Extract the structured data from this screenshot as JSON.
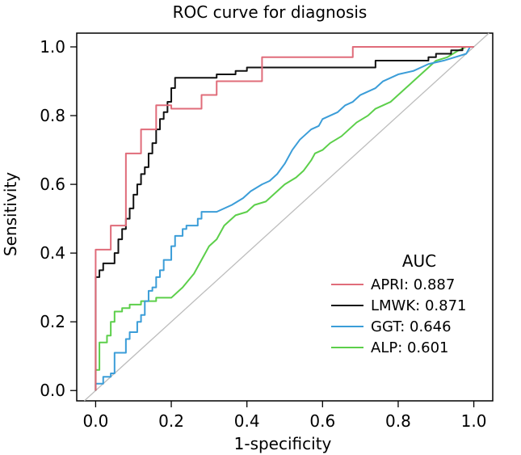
{
  "chart_data": {
    "type": "line",
    "title": "ROC curve for diagnosis",
    "xlabel": "1-specificity",
    "ylabel": "Sensitivity",
    "xlim": [
      -0.05,
      1.05
    ],
    "ylim": [
      -0.03,
      1.04
    ],
    "x_ticks": [
      "0.0",
      "0.2",
      "0.4",
      "0.6",
      "0.8",
      "1.0"
    ],
    "y_ticks": [
      "0.0",
      "0.2",
      "0.4",
      "0.6",
      "0.8",
      "1.0"
    ],
    "grid": false,
    "reference_line": true,
    "reference_line_color": "#bdbdbd",
    "legend": {
      "title": "AUC",
      "position": "bottom-right",
      "entries": [
        "APRI: 0.887",
        "LMWK: 0.871",
        "GGT: 0.646",
        "ALP: 0.601"
      ]
    },
    "series": [
      {
        "name": "APRI",
        "auc": 0.887,
        "color": "#e06c7a",
        "points": [
          [
            0,
            0
          ],
          [
            0,
            0.41
          ],
          [
            0.04,
            0.41
          ],
          [
            0.04,
            0.48
          ],
          [
            0.08,
            0.48
          ],
          [
            0.08,
            0.69
          ],
          [
            0.12,
            0.69
          ],
          [
            0.12,
            0.76
          ],
          [
            0.16,
            0.76
          ],
          [
            0.16,
            0.83
          ],
          [
            0.2,
            0.83
          ],
          [
            0.2,
            0.82
          ],
          [
            0.28,
            0.82
          ],
          [
            0.28,
            0.86
          ],
          [
            0.32,
            0.86
          ],
          [
            0.32,
            0.9
          ],
          [
            0.44,
            0.9
          ],
          [
            0.44,
            0.97
          ],
          [
            0.68,
            0.97
          ],
          [
            0.68,
            1.0
          ],
          [
            1.0,
            1.0
          ]
        ]
      },
      {
        "name": "LMWK",
        "auc": 0.871,
        "color": "#111111",
        "points": [
          [
            0,
            0
          ],
          [
            0,
            0.33
          ],
          [
            0.01,
            0.33
          ],
          [
            0.01,
            0.35
          ],
          [
            0.02,
            0.35
          ],
          [
            0.02,
            0.37
          ],
          [
            0.05,
            0.37
          ],
          [
            0.05,
            0.4
          ],
          [
            0.06,
            0.4
          ],
          [
            0.06,
            0.44
          ],
          [
            0.07,
            0.44
          ],
          [
            0.07,
            0.47
          ],
          [
            0.08,
            0.47
          ],
          [
            0.08,
            0.5
          ],
          [
            0.09,
            0.5
          ],
          [
            0.09,
            0.53
          ],
          [
            0.1,
            0.53
          ],
          [
            0.1,
            0.57
          ],
          [
            0.11,
            0.57
          ],
          [
            0.11,
            0.6
          ],
          [
            0.12,
            0.6
          ],
          [
            0.12,
            0.63
          ],
          [
            0.13,
            0.63
          ],
          [
            0.13,
            0.65
          ],
          [
            0.14,
            0.65
          ],
          [
            0.14,
            0.69
          ],
          [
            0.15,
            0.69
          ],
          [
            0.15,
            0.72
          ],
          [
            0.16,
            0.72
          ],
          [
            0.16,
            0.76
          ],
          [
            0.17,
            0.76
          ],
          [
            0.17,
            0.79
          ],
          [
            0.18,
            0.79
          ],
          [
            0.18,
            0.81
          ],
          [
            0.19,
            0.81
          ],
          [
            0.19,
            0.84
          ],
          [
            0.2,
            0.84
          ],
          [
            0.2,
            0.88
          ],
          [
            0.21,
            0.88
          ],
          [
            0.21,
            0.91
          ],
          [
            0.32,
            0.91
          ],
          [
            0.32,
            0.92
          ],
          [
            0.37,
            0.92
          ],
          [
            0.37,
            0.93
          ],
          [
            0.4,
            0.93
          ],
          [
            0.4,
            0.94
          ],
          [
            0.74,
            0.94
          ],
          [
            0.74,
            0.96
          ],
          [
            0.88,
            0.96
          ],
          [
            0.88,
            0.97
          ],
          [
            0.9,
            0.97
          ],
          [
            0.9,
            0.98
          ],
          [
            0.94,
            0.98
          ],
          [
            0.94,
            0.99
          ],
          [
            0.97,
            0.99
          ],
          [
            0.97,
            1.0
          ],
          [
            1.0,
            1.0
          ]
        ]
      },
      {
        "name": "GGT",
        "auc": 0.646,
        "color": "#3b9dd8",
        "points": [
          [
            0,
            0
          ],
          [
            0,
            0.02
          ],
          [
            0.02,
            0.02
          ],
          [
            0.02,
            0.04
          ],
          [
            0.04,
            0.04
          ],
          [
            0.04,
            0.05
          ],
          [
            0.05,
            0.05
          ],
          [
            0.05,
            0.11
          ],
          [
            0.08,
            0.11
          ],
          [
            0.08,
            0.15
          ],
          [
            0.09,
            0.15
          ],
          [
            0.09,
            0.17
          ],
          [
            0.11,
            0.17
          ],
          [
            0.11,
            0.2
          ],
          [
            0.12,
            0.2
          ],
          [
            0.12,
            0.22
          ],
          [
            0.13,
            0.22
          ],
          [
            0.13,
            0.26
          ],
          [
            0.14,
            0.26
          ],
          [
            0.14,
            0.29
          ],
          [
            0.15,
            0.29
          ],
          [
            0.15,
            0.3
          ],
          [
            0.16,
            0.3
          ],
          [
            0.16,
            0.33
          ],
          [
            0.17,
            0.33
          ],
          [
            0.17,
            0.35
          ],
          [
            0.18,
            0.35
          ],
          [
            0.18,
            0.38
          ],
          [
            0.2,
            0.38
          ],
          [
            0.2,
            0.42
          ],
          [
            0.21,
            0.42
          ],
          [
            0.21,
            0.45
          ],
          [
            0.23,
            0.45
          ],
          [
            0.23,
            0.47
          ],
          [
            0.24,
            0.47
          ],
          [
            0.24,
            0.48
          ],
          [
            0.27,
            0.48
          ],
          [
            0.27,
            0.5
          ],
          [
            0.28,
            0.5
          ],
          [
            0.28,
            0.52
          ],
          [
            0.32,
            0.52
          ],
          [
            0.36,
            0.54
          ],
          [
            0.39,
            0.56
          ],
          [
            0.41,
            0.58
          ],
          [
            0.44,
            0.6
          ],
          [
            0.46,
            0.61
          ],
          [
            0.48,
            0.63
          ],
          [
            0.5,
            0.66
          ],
          [
            0.52,
            0.7
          ],
          [
            0.54,
            0.73
          ],
          [
            0.56,
            0.75
          ],
          [
            0.57,
            0.76
          ],
          [
            0.59,
            0.77
          ],
          [
            0.6,
            0.79
          ],
          [
            0.62,
            0.8
          ],
          [
            0.64,
            0.81
          ],
          [
            0.66,
            0.83
          ],
          [
            0.68,
            0.84
          ],
          [
            0.7,
            0.86
          ],
          [
            0.72,
            0.87
          ],
          [
            0.74,
            0.88
          ],
          [
            0.76,
            0.9
          ],
          [
            0.78,
            0.91
          ],
          [
            0.8,
            0.92
          ],
          [
            0.84,
            0.93
          ],
          [
            0.88,
            0.95
          ],
          [
            0.92,
            0.96
          ],
          [
            0.95,
            0.97
          ],
          [
            0.98,
            0.98
          ],
          [
            0.99,
            1.0
          ],
          [
            1.0,
            1.0
          ]
        ]
      },
      {
        "name": "ALP",
        "auc": 0.601,
        "color": "#5ccf4a",
        "points": [
          [
            0,
            0
          ],
          [
            0,
            0.06
          ],
          [
            0.01,
            0.06
          ],
          [
            0.01,
            0.14
          ],
          [
            0.03,
            0.14
          ],
          [
            0.03,
            0.16
          ],
          [
            0.04,
            0.16
          ],
          [
            0.04,
            0.2
          ],
          [
            0.05,
            0.2
          ],
          [
            0.05,
            0.23
          ],
          [
            0.07,
            0.23
          ],
          [
            0.07,
            0.24
          ],
          [
            0.09,
            0.24
          ],
          [
            0.09,
            0.25
          ],
          [
            0.12,
            0.25
          ],
          [
            0.12,
            0.26
          ],
          [
            0.16,
            0.26
          ],
          [
            0.16,
            0.27
          ],
          [
            0.2,
            0.27
          ],
          [
            0.23,
            0.3
          ],
          [
            0.26,
            0.34
          ],
          [
            0.28,
            0.38
          ],
          [
            0.3,
            0.42
          ],
          [
            0.32,
            0.44
          ],
          [
            0.34,
            0.48
          ],
          [
            0.37,
            0.51
          ],
          [
            0.4,
            0.52
          ],
          [
            0.42,
            0.54
          ],
          [
            0.45,
            0.55
          ],
          [
            0.47,
            0.57
          ],
          [
            0.5,
            0.6
          ],
          [
            0.53,
            0.62
          ],
          [
            0.55,
            0.64
          ],
          [
            0.57,
            0.67
          ],
          [
            0.58,
            0.69
          ],
          [
            0.6,
            0.7
          ],
          [
            0.62,
            0.72
          ],
          [
            0.65,
            0.74
          ],
          [
            0.67,
            0.76
          ],
          [
            0.69,
            0.78
          ],
          [
            0.72,
            0.8
          ],
          [
            0.74,
            0.82
          ],
          [
            0.76,
            0.83
          ],
          [
            0.78,
            0.84
          ],
          [
            0.8,
            0.86
          ],
          [
            0.82,
            0.88
          ],
          [
            0.84,
            0.9
          ],
          [
            0.86,
            0.92
          ],
          [
            0.88,
            0.94
          ],
          [
            0.9,
            0.96
          ],
          [
            0.93,
            0.97
          ],
          [
            0.96,
            0.99
          ],
          [
            0.98,
            1.0
          ],
          [
            1.0,
            1.0
          ]
        ]
      }
    ]
  }
}
